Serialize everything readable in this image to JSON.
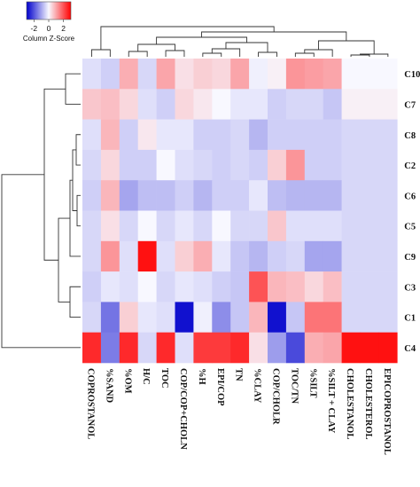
{
  "chart_data": {
    "type": "heatmap",
    "title": "",
    "color_key": {
      "title": "Column Z-Score",
      "ticks": [
        "-2",
        "0",
        "2"
      ],
      "range": [
        -3,
        3
      ],
      "colors": {
        "low": "#0000cc",
        "mid": "#f8f8ff",
        "high": "#ff0000"
      }
    },
    "rows": [
      "C10",
      "C7",
      "C8",
      "C2",
      "C6",
      "C5",
      "C9",
      "C3",
      "C1",
      "C4"
    ],
    "columns": [
      "COPROSTANOL",
      "%SAND",
      "%OM",
      "H/C",
      "TOC",
      "COP/COP+CHOLN",
      "%H",
      "EPI/COP",
      "TN",
      "%CLAY",
      "COP/CHOLR",
      "TOC/TN",
      "%SILT",
      "%SILT + CLAY",
      "CHOLESTANOL",
      "CHOLESTEROL",
      "EPICOPROSTANOL"
    ],
    "values": [
      [
        -0.3,
        -0.5,
        0.9,
        -0.4,
        1.0,
        0.3,
        0.5,
        0.4,
        1.0,
        -0.1,
        0.1,
        1.2,
        1.1,
        1.0,
        0.0,
        0.0,
        0.0
      ],
      [
        0.6,
        0.7,
        0.4,
        -0.3,
        -0.5,
        0.4,
        0.2,
        0.0,
        -0.2,
        -0.2,
        -0.5,
        -0.4,
        -0.4,
        -0.6,
        0.1,
        0.1,
        0.1
      ],
      [
        -0.3,
        0.8,
        -0.5,
        0.2,
        -0.2,
        -0.2,
        -0.5,
        -0.5,
        -0.4,
        -0.8,
        -0.5,
        -0.5,
        -0.5,
        -0.5,
        -0.4,
        -0.4,
        -0.4
      ],
      [
        -0.4,
        0.4,
        -0.5,
        -0.5,
        0.0,
        -0.3,
        -0.4,
        -0.5,
        -0.4,
        -0.5,
        0.5,
        1.2,
        -0.5,
        -0.5,
        -0.4,
        -0.4,
        -0.4
      ],
      [
        -0.5,
        0.8,
        -1.0,
        -0.7,
        -0.7,
        -0.5,
        -0.8,
        -0.5,
        -0.5,
        -0.2,
        -0.7,
        -0.8,
        -0.8,
        -0.8,
        -0.4,
        -0.4,
        -0.4
      ],
      [
        -0.4,
        0.3,
        -0.4,
        0.0,
        -0.4,
        -0.2,
        -0.4,
        0.0,
        -0.4,
        -0.4,
        0.6,
        -0.3,
        -0.3,
        -0.3,
        -0.4,
        -0.4,
        -0.4
      ],
      [
        -0.4,
        1.2,
        -0.3,
        2.8,
        -0.3,
        0.5,
        0.9,
        -0.2,
        -0.6,
        -0.8,
        -0.5,
        -0.4,
        -1.0,
        -1.0,
        -0.4,
        -0.4,
        -0.4
      ],
      [
        -0.5,
        -0.2,
        -0.3,
        0.0,
        -0.4,
        -0.2,
        -0.3,
        -0.5,
        -0.6,
        2.0,
        0.8,
        0.7,
        0.4,
        0.7,
        -0.4,
        -0.4,
        -0.4
      ],
      [
        -0.4,
        -1.6,
        0.5,
        -0.2,
        -0.3,
        -2.8,
        -0.1,
        -1.3,
        -0.6,
        0.8,
        -2.8,
        -0.6,
        1.6,
        1.6,
        -0.4,
        -0.4,
        -0.4
      ],
      [
        2.5,
        -1.5,
        2.5,
        -0.4,
        2.5,
        -0.3,
        2.3,
        2.3,
        2.5,
        0.3,
        -1.1,
        -2.1,
        0.9,
        1.0,
        2.8,
        2.8,
        2.8
      ]
    ],
    "legend_position": "top-left"
  }
}
